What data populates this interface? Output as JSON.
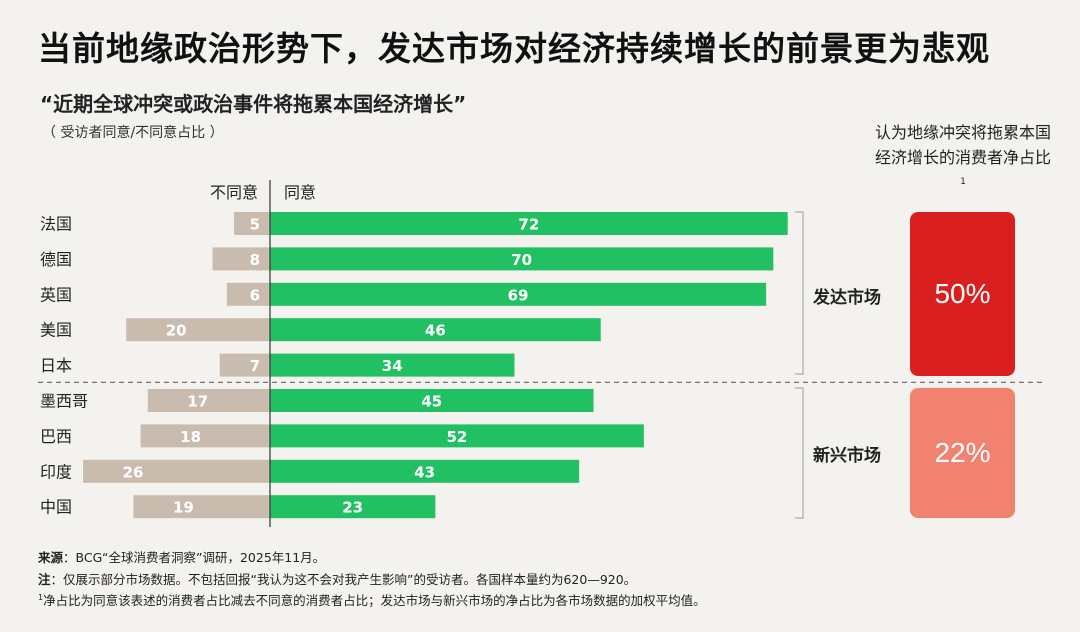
{
  "header": {
    "title": "当前地缘政治形势下，发达市场对经济持续增长的前景更为悲观",
    "subtitle": "“近期全球冲突或政治事件将拖累本国经济增长”",
    "note": "（ 受访者同意/不同意占比 ）"
  },
  "side": {
    "title": "认为地缘冲突将拖累本国经济增长的消费者净占比",
    "title_sup": "1",
    "developed_value": "50%",
    "emerging_value": "22%",
    "developed_label": "发达市场",
    "emerging_label": "新兴市场"
  },
  "colors": {
    "agree": "#21c063",
    "disagree": "#c9bcaf",
    "developed_box": "#d9201f",
    "emerging_box": "#f28270",
    "background": "#f4f2ef"
  },
  "chart_data": {
    "type": "bar",
    "orientation": "horizontal-diverging",
    "categories": [
      "法国",
      "德国",
      "英国",
      "美国",
      "日本",
      "墨西哥",
      "巴西",
      "印度",
      "中国"
    ],
    "series": [
      {
        "name": "不同意",
        "values": [
          5,
          8,
          6,
          20,
          7,
          17,
          18,
          26,
          19
        ]
      },
      {
        "name": "同意",
        "values": [
          72,
          70,
          69,
          46,
          34,
          45,
          52,
          43,
          23
        ]
      }
    ],
    "groups": [
      {
        "name": "发达市场",
        "categories": [
          "法国",
          "德国",
          "英国",
          "美国",
          "日本"
        ]
      },
      {
        "name": "新兴市场",
        "categories": [
          "墨西哥",
          "巴西",
          "印度",
          "中国"
        ]
      }
    ],
    "legend_left": "不同意",
    "legend_right": "同意"
  },
  "footer": {
    "source_label": "来源",
    "source_text": "：BCG“全球消费者洞察”调研，2025年11月。",
    "note_label": "注",
    "note_text": "：仅展示部分市场数据。不包括回报“我认为这不会对我产生影响”的受访者。各国样本量约为620—920。",
    "footnote_sup": "1",
    "footnote_text": "净占比为同意该表述的消费者占比减去不同意的消费者占比；发达市场与新兴市场的净占比为各市场数据的加权平均值。"
  }
}
